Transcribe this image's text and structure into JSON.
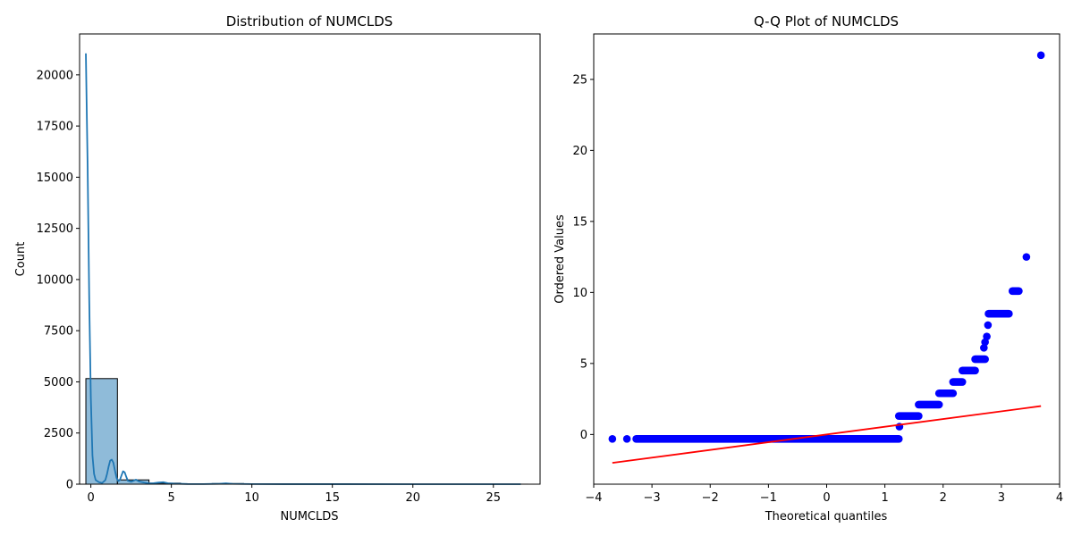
{
  "chart_data": [
    {
      "type": "bar",
      "title": "Distribution of NUMCLDS",
      "xlabel": "NUMCLDS",
      "ylabel": "Count",
      "xlim": [
        -0.7,
        27.9
      ],
      "ylim": [
        0,
        22000
      ],
      "xticks": [
        0,
        5,
        10,
        15,
        20,
        25
      ],
      "yticks": [
        0,
        2500,
        5000,
        7500,
        10000,
        12500,
        15000,
        17500,
        20000
      ],
      "grid": false,
      "bar_color": "#1f77b4",
      "bins": [
        {
          "start": -0.31,
          "end": 1.65,
          "count": 5160
        },
        {
          "start": 1.65,
          "end": 3.61,
          "count": 210
        },
        {
          "start": 3.61,
          "end": 5.57,
          "count": 50
        },
        {
          "start": 5.57,
          "end": 7.53,
          "count": 15
        },
        {
          "start": 7.53,
          "end": 9.49,
          "count": 30
        },
        {
          "start": 9.49,
          "end": 11.45,
          "count": 10
        },
        {
          "start": 11.45,
          "end": 13.41,
          "count": 2
        },
        {
          "start": 13.41,
          "end": 15.37,
          "count": 0
        },
        {
          "start": 15.37,
          "end": 17.33,
          "count": 0
        },
        {
          "start": 17.33,
          "end": 19.29,
          "count": 0
        },
        {
          "start": 19.29,
          "end": 21.25,
          "count": 0
        },
        {
          "start": 21.25,
          "end": 23.21,
          "count": 0
        },
        {
          "start": 23.21,
          "end": 25.17,
          "count": 0
        },
        {
          "start": 25.17,
          "end": 27.13,
          "count": 1
        }
      ],
      "kde": {
        "x": [
          -0.31,
          -0.25,
          -0.2,
          -0.1,
          0.0,
          0.1,
          0.2,
          0.3,
          0.5,
          0.7,
          0.9,
          1.0,
          1.1,
          1.2,
          1.3,
          1.4,
          1.5,
          1.6,
          1.7,
          1.8,
          1.9,
          2.0,
          2.1,
          2.2,
          2.3,
          2.5,
          2.8,
          3.0,
          3.3,
          3.6,
          3.9,
          4.2,
          4.5,
          4.8,
          5.2,
          5.5,
          6.0,
          7.0,
          8.0,
          8.4,
          8.8,
          10.0,
          12.0,
          15.0,
          20.0,
          25.0,
          26.7
        ],
        "y": [
          21050,
          18000,
          15500,
          9000,
          4200,
          1400,
          500,
          200,
          100,
          60,
          200,
          480,
          850,
          1150,
          1200,
          1050,
          650,
          300,
          150,
          200,
          420,
          630,
          580,
          360,
          170,
          120,
          220,
          130,
          80,
          40,
          50,
          80,
          100,
          45,
          25,
          20,
          8,
          5,
          20,
          40,
          15,
          5,
          3,
          2,
          1,
          1,
          1
        ]
      }
    },
    {
      "type": "scatter",
      "title": "Q-Q Plot of NUMCLDS",
      "xlabel": "Theoretical quantiles",
      "ylabel": "Ordered Values",
      "xlim": [
        -4.0,
        4.0
      ],
      "ylim": [
        -3.5,
        28.2
      ],
      "xticks": [
        -4,
        -3,
        -2,
        -1,
        0,
        1,
        2,
        3,
        4
      ],
      "yticks": [
        0,
        5,
        10,
        15,
        20,
        25
      ],
      "grid": false,
      "point_color": "#0000ff",
      "line_color": "#ff0000",
      "fit_line": {
        "x": [
          -3.68,
          3.68
        ],
        "y": [
          -2.0,
          2.0
        ]
      },
      "segments": [
        {
          "x0": -3.68,
          "x1": -3.68,
          "y": -0.31
        },
        {
          "x0": -3.43,
          "x1": -3.43,
          "y": -0.31
        },
        {
          "x0": -3.27,
          "x1": 1.24,
          "y": -0.31
        },
        {
          "x0": 1.25,
          "x1": 1.25,
          "y": 0.55
        },
        {
          "x0": 1.24,
          "x1": 1.58,
          "y": 1.3
        },
        {
          "x0": 1.58,
          "x1": 1.93,
          "y": 2.1
        },
        {
          "x0": 1.93,
          "x1": 2.17,
          "y": 2.9
        },
        {
          "x0": 2.17,
          "x1": 2.33,
          "y": 3.7
        },
        {
          "x0": 2.33,
          "x1": 2.55,
          "y": 4.5
        },
        {
          "x0": 2.55,
          "x1": 2.72,
          "y": 5.3
        },
        {
          "x0": 2.7,
          "x1": 2.7,
          "y": 6.1
        },
        {
          "x0": 2.72,
          "x1": 2.72,
          "y": 6.5
        },
        {
          "x0": 2.75,
          "x1": 2.75,
          "y": 6.9
        },
        {
          "x0": 2.77,
          "x1": 2.77,
          "y": 7.7
        },
        {
          "x0": 2.78,
          "x1": 3.13,
          "y": 8.5
        },
        {
          "x0": 3.19,
          "x1": 3.3,
          "y": 10.1
        },
        {
          "x0": 3.43,
          "x1": 3.43,
          "y": 12.5
        },
        {
          "x0": 3.68,
          "x1": 3.68,
          "y": 26.7
        }
      ]
    }
  ]
}
